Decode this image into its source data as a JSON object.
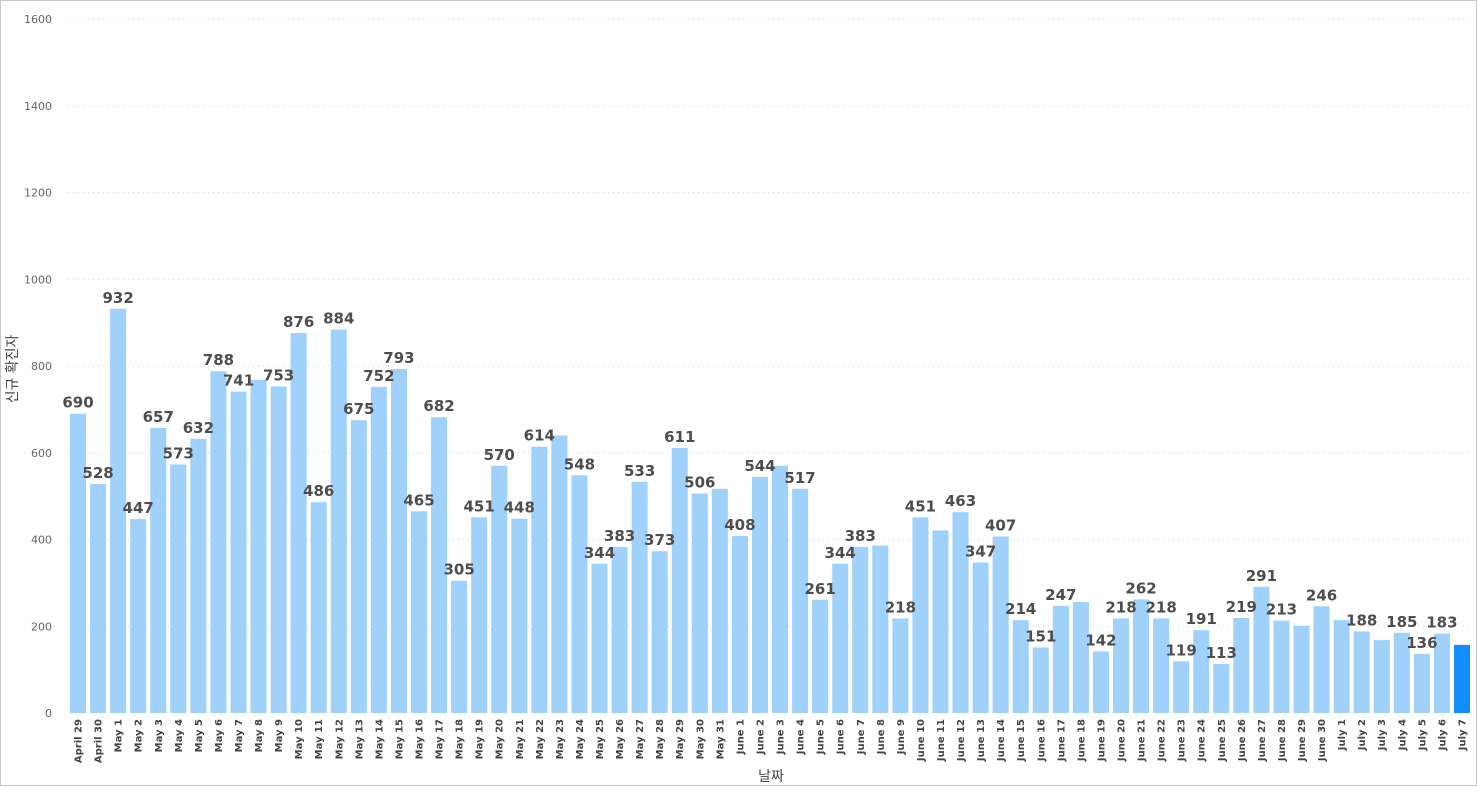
{
  "chart_data": {
    "type": "bar",
    "title": "",
    "xlabel": "날짜",
    "ylabel": "신규 확진자",
    "ylim": [
      0,
      1600
    ],
    "yticks": [
      0,
      200,
      400,
      600,
      800,
      1000,
      1200,
      1400,
      1600
    ],
    "grid": true,
    "colors": {
      "bar": "#a0d1fb",
      "highlight": "#118dff",
      "label": "#4d4d4d"
    },
    "categories": [
      "April 29",
      "April 30",
      "May 1",
      "May 2",
      "May 3",
      "May 4",
      "May 5",
      "May 6",
      "May 7",
      "May 8",
      "May 9",
      "May 10",
      "May 11",
      "May 12",
      "May 13",
      "May 14",
      "May 15",
      "May 16",
      "May 17",
      "May 18",
      "May 19",
      "May 20",
      "May 21",
      "May 22",
      "May 23",
      "May 24",
      "May 25",
      "May 26",
      "May 27",
      "May 28",
      "May 29",
      "May 30",
      "May 31",
      "June 1",
      "June 2",
      "June 3",
      "June 4",
      "June 5",
      "June 6",
      "June 7",
      "June 8",
      "June 9",
      "June 10",
      "June 11",
      "June 12",
      "June 13",
      "June 14",
      "June 15",
      "June 16",
      "June 17",
      "June 18",
      "June 19",
      "June 20",
      "June 21",
      "June 22",
      "June 23",
      "June 24",
      "June 25",
      "June 26",
      "June 27",
      "June 28",
      "June 29",
      "June 30",
      "July 1",
      "July 2",
      "July 3",
      "July 4",
      "July 5",
      "July 6",
      "July 7"
    ],
    "values": [
      690,
      528,
      932,
      447,
      657,
      573,
      632,
      788,
      741,
      768,
      753,
      876,
      486,
      884,
      675,
      752,
      793,
      465,
      682,
      305,
      451,
      570,
      448,
      614,
      640,
      548,
      344,
      383,
      533,
      373,
      611,
      506,
      517,
      408,
      544,
      570,
      517,
      261,
      344,
      383,
      386,
      218,
      451,
      421,
      463,
      347,
      407,
      214,
      151,
      247,
      256,
      142,
      218,
      262,
      218,
      119,
      191,
      113,
      219,
      291,
      213,
      201,
      246,
      214,
      188,
      168,
      185,
      136,
      183,
      157
    ],
    "data_labels": [
      "690",
      "528",
      "932",
      "447",
      "657",
      "573",
      "632",
      "788",
      "741",
      "",
      "753",
      "876",
      "486",
      "884",
      "675",
      "752",
      "793",
      "465",
      "682",
      "305",
      "451",
      "570",
      "448",
      "614",
      "",
      "548",
      "344",
      "383",
      "533",
      "373",
      "611",
      "506",
      "",
      "408",
      "544",
      "",
      "517",
      "261",
      "344",
      "383",
      "",
      "218",
      "451",
      "",
      "463",
      "347",
      "407",
      "214",
      "151",
      "247",
      "",
      "142",
      "218",
      "262",
      "218",
      "119",
      "191",
      "113",
      "219",
      "291",
      "213",
      "",
      "246",
      "",
      "188",
      "",
      "185",
      "136",
      "183",
      ""
    ],
    "highlight_index": 69
  }
}
